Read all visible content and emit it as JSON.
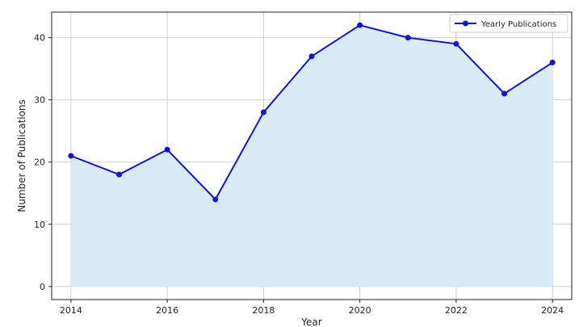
{
  "chart_data": {
    "type": "line",
    "title": "",
    "xlabel": "Year",
    "ylabel": "Number of Publications",
    "x": [
      2014,
      2015,
      2016,
      2017,
      2018,
      2019,
      2020,
      2021,
      2022,
      2023,
      2024
    ],
    "series": [
      {
        "name": "Yearly Publications",
        "values": [
          21,
          18,
          22,
          14,
          28,
          37,
          42,
          40,
          39,
          31,
          36
        ],
        "color": "#1010e0",
        "fill_color": "#d9ecf5"
      }
    ],
    "xticks": [
      "2014",
      "2016",
      "2018",
      "2020",
      "2022",
      "2024"
    ],
    "yticks": [
      "0",
      "10",
      "20",
      "30",
      "40"
    ],
    "xlim": [
      2013.6,
      2024.4
    ],
    "ylim": [
      -2.1,
      44.1
    ],
    "grid": true,
    "legend_position": "top-right"
  }
}
